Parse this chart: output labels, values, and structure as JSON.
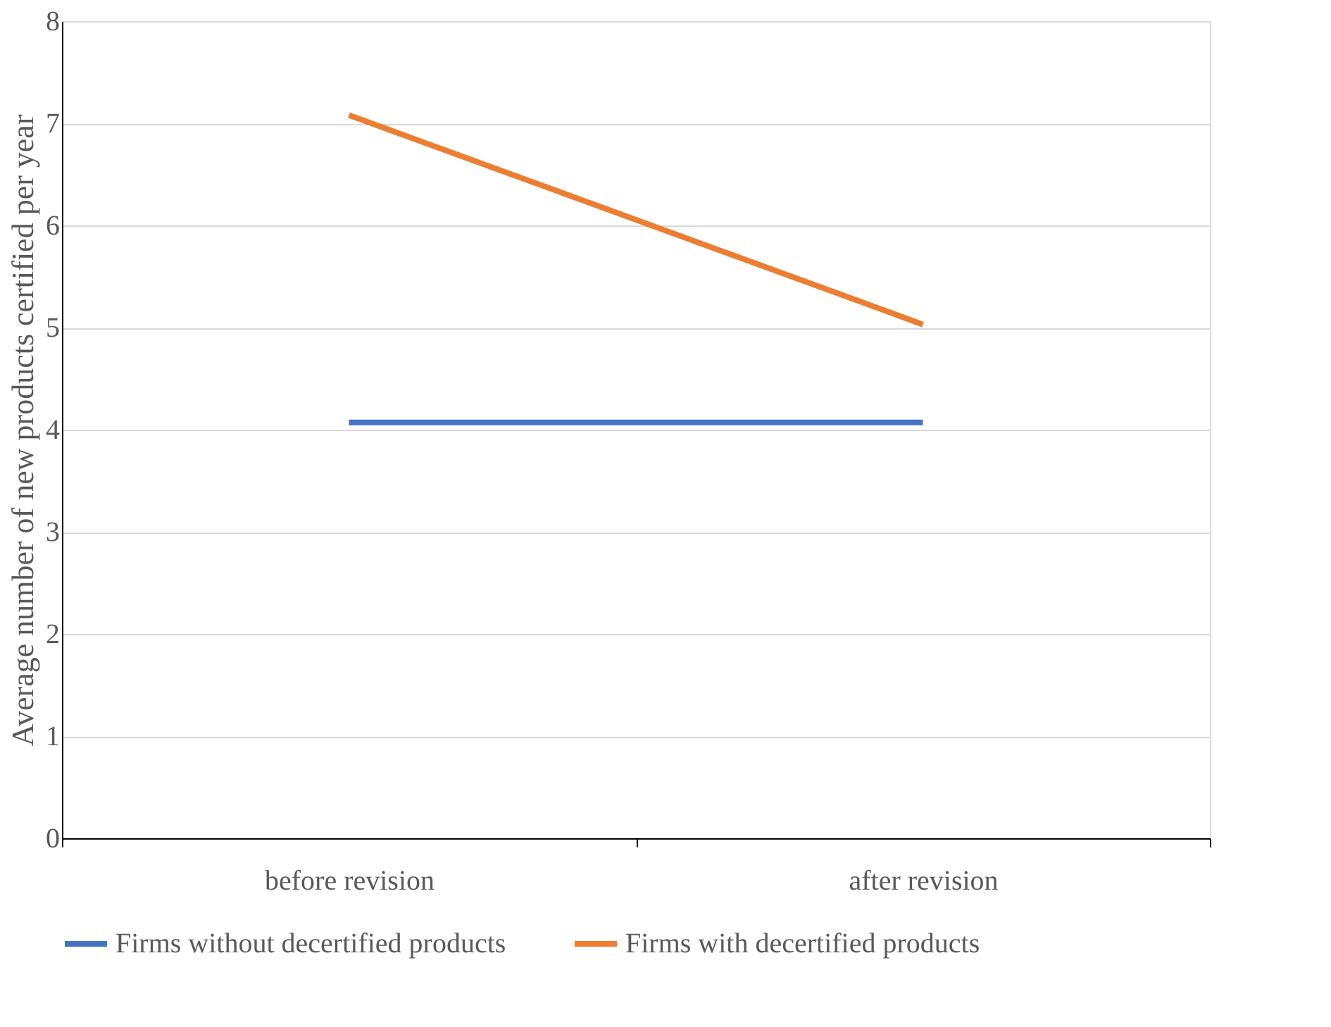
{
  "chart_data": {
    "type": "line",
    "ylabel": "Average number of new products certified per year",
    "categories": [
      "before revision",
      "after revision"
    ],
    "series": [
      {
        "name": "Firms without decertified products",
        "color": "#4472c4",
        "values": [
          4.07,
          4.07
        ]
      },
      {
        "name": "Firms with decertified products",
        "color": "#ed7d31",
        "values": [
          7.08,
          5.03
        ]
      }
    ],
    "ylim": [
      0,
      8
    ],
    "yticks": [
      0,
      1,
      2,
      3,
      4,
      5,
      6,
      7,
      8
    ],
    "grid": "y",
    "legend": "bottom",
    "marker": "none",
    "line_style": "solid"
  }
}
